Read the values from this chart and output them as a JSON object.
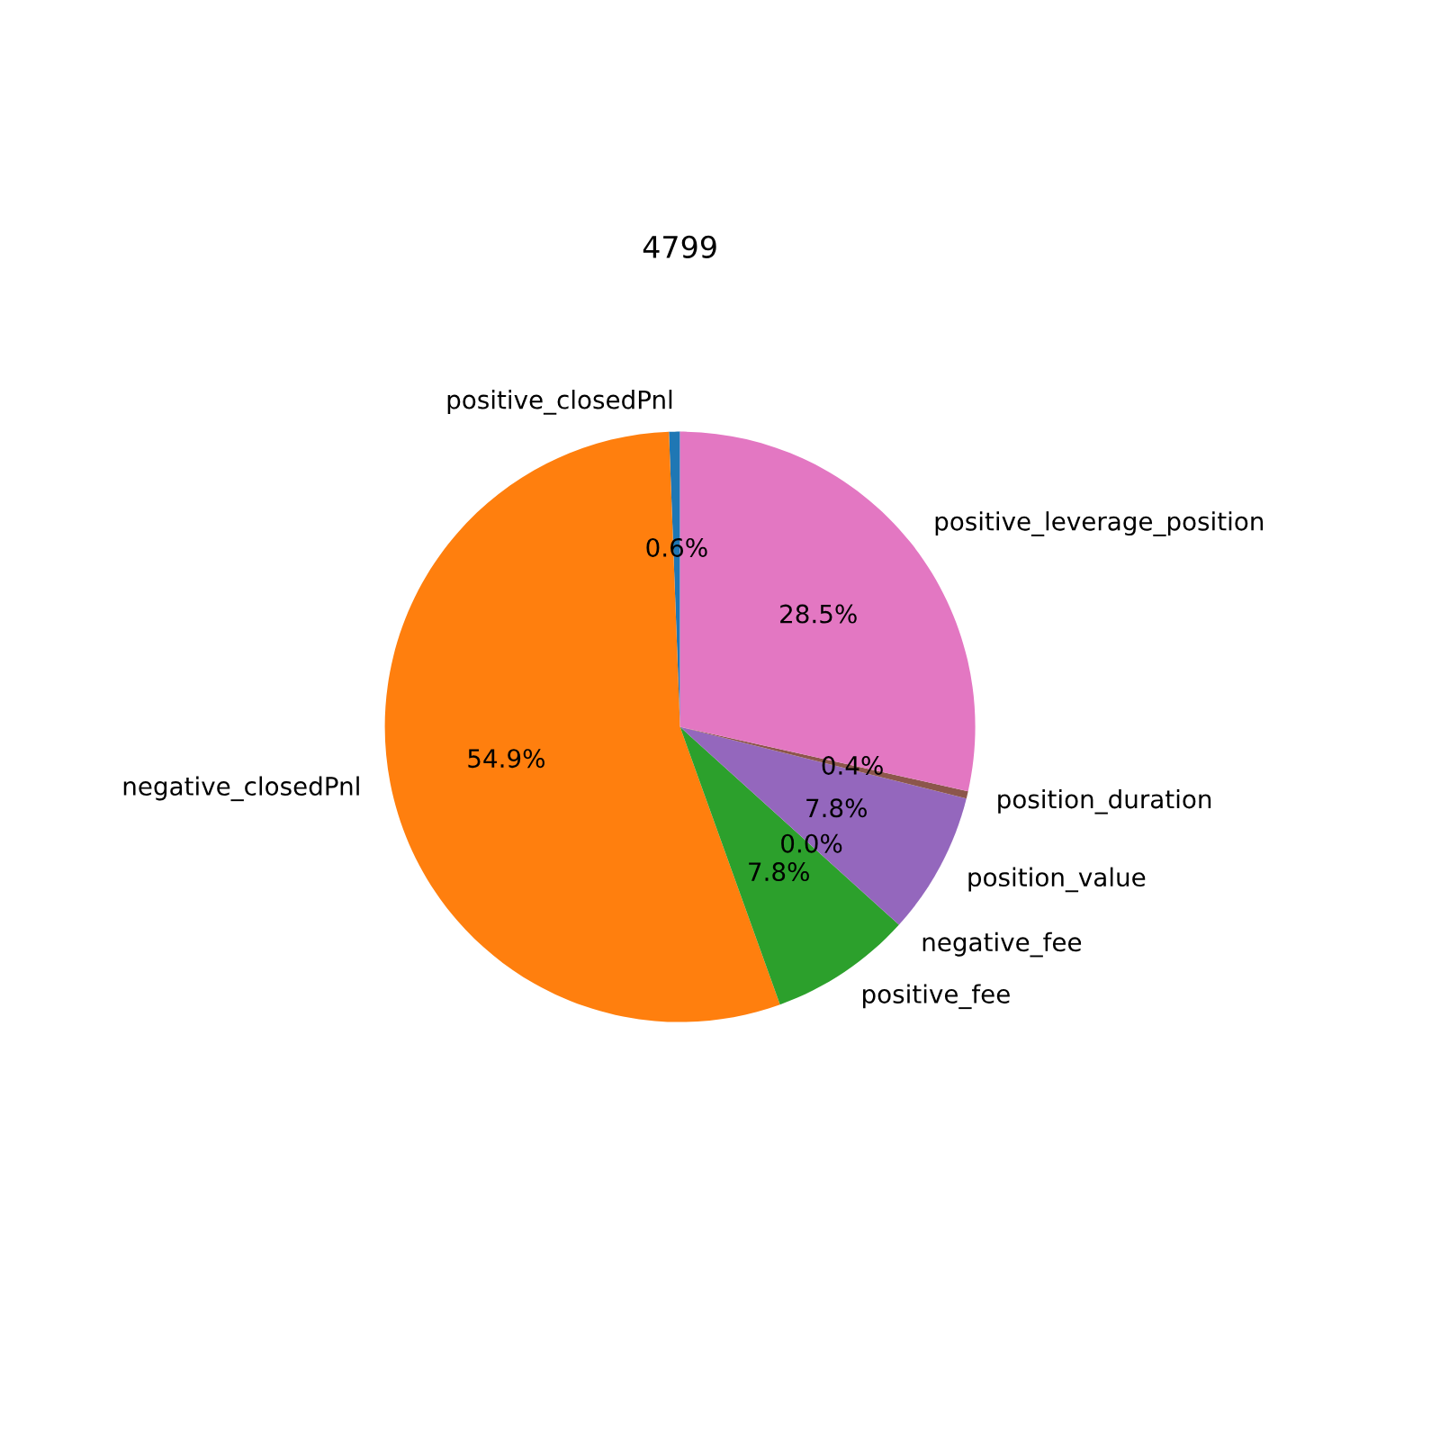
{
  "chart_data": {
    "type": "pie",
    "title": "4799",
    "categories": [
      "positive_closedPnl",
      "negative_closedPnl",
      "positive_fee",
      "negative_fee",
      "position_value",
      "position_duration",
      "positive_leverage_position"
    ],
    "values": [
      0.6,
      54.9,
      7.8,
      0.0,
      7.8,
      0.4,
      28.5
    ],
    "value_labels": [
      "0.6%",
      "54.9%",
      "7.8%",
      "0.0%",
      "7.8%",
      "0.4%",
      "28.5%"
    ],
    "colors": [
      "#1f77b4",
      "#ff7f0e",
      "#2ca02c",
      "#d62728",
      "#9467bd",
      "#8c564b",
      "#e377c2"
    ],
    "legend": false
  }
}
